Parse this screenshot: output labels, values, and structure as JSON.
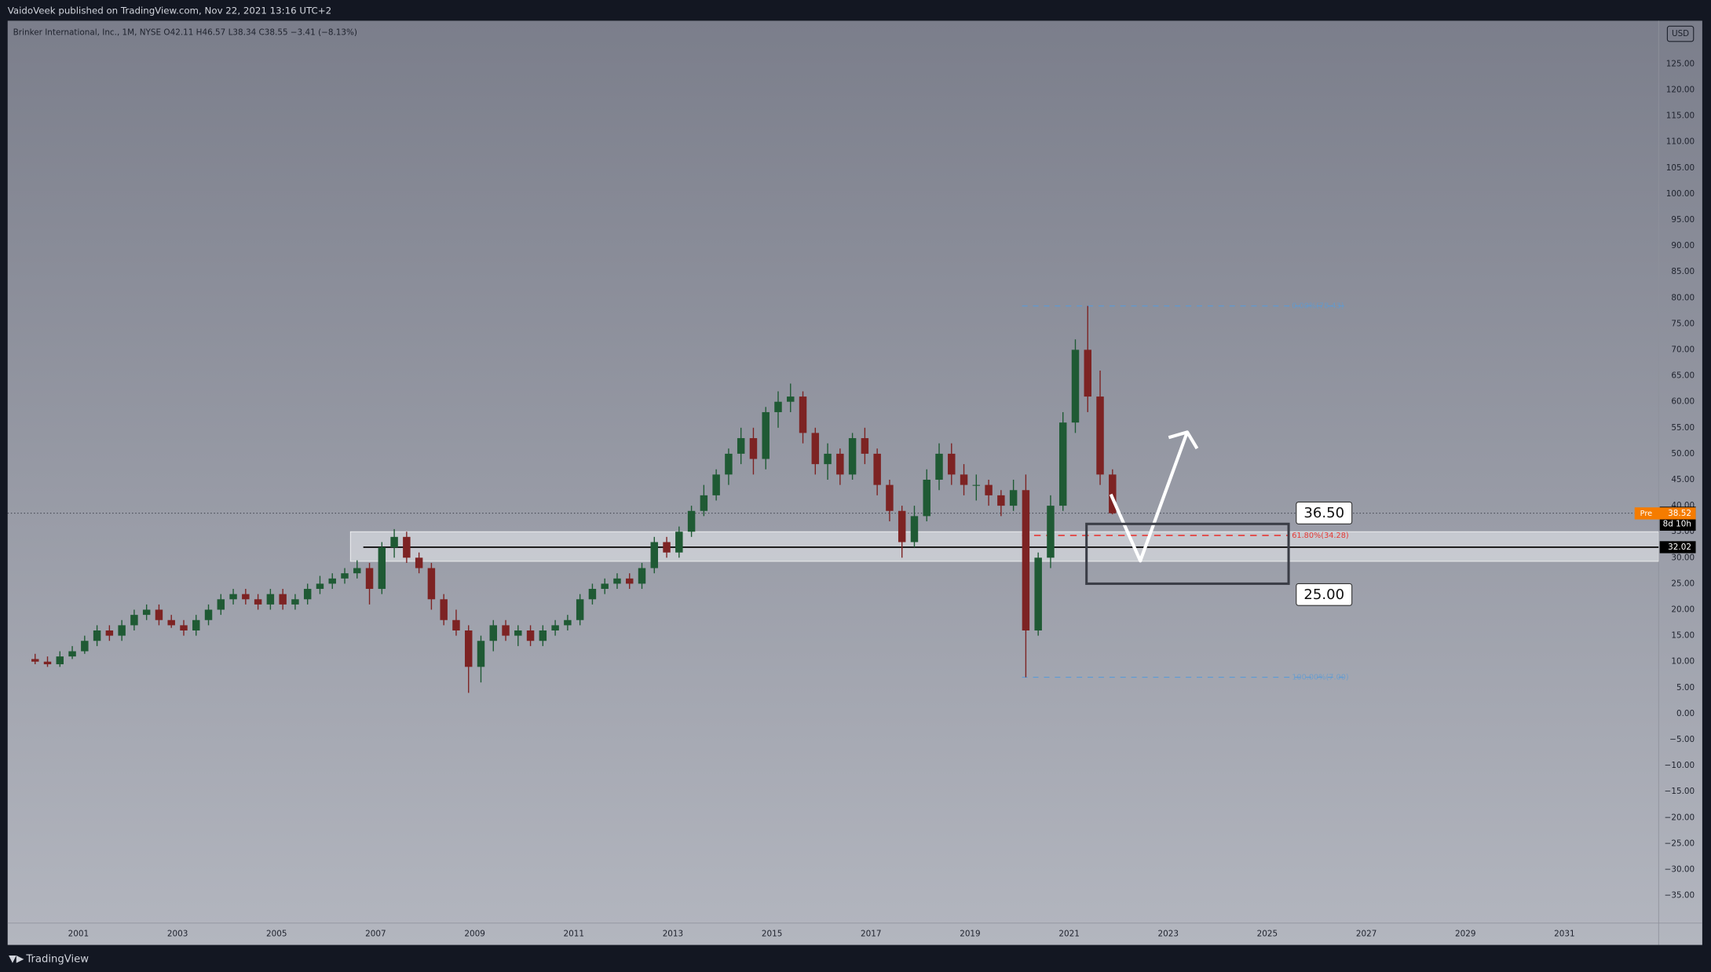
{
  "header": "VaidoVeek published on TradingView.com, Nov 22, 2021 13:16 UTC+2",
  "footer": "TradingView",
  "chart_data": {
    "type": "candlestick",
    "legend": "Brinker International, Inc., 1M, NYSE  O42.11 H46.57 L38.34 C38.55 −3.41 (−8.13%)",
    "currency": "USD",
    "up_color": "#1f5a34",
    "down_color": "#7d2323",
    "x": [
      2000.125,
      2000.375,
      2000.625,
      2000.875,
      2001.125,
      2001.375,
      2001.625,
      2001.875,
      2002.125,
      2002.375,
      2002.625,
      2002.875,
      2003.125,
      2003.375,
      2003.625,
      2003.875,
      2004.125,
      2004.375,
      2004.625,
      2004.875,
      2005.125,
      2005.375,
      2005.625,
      2005.875,
      2006.125,
      2006.375,
      2006.625,
      2006.875,
      2007.125,
      2007.375,
      2007.625,
      2007.875,
      2008.125,
      2008.375,
      2008.625,
      2008.875,
      2009.125,
      2009.375,
      2009.625,
      2009.875,
      2010.125,
      2010.375,
      2010.625,
      2010.875,
      2011.125,
      2011.375,
      2011.625,
      2011.875,
      2012.125,
      2012.375,
      2012.625,
      2012.875,
      2013.125,
      2013.375,
      2013.625,
      2013.875,
      2014.125,
      2014.375,
      2014.625,
      2014.875,
      2015.125,
      2015.375,
      2015.625,
      2015.875,
      2016.125,
      2016.375,
      2016.625,
      2016.875,
      2017.125,
      2017.375,
      2017.625,
      2017.875,
      2018.125,
      2018.375,
      2018.625,
      2018.875,
      2019.125,
      2019.375,
      2019.625,
      2019.875,
      2020.125,
      2020.375,
      2020.625,
      2020.875,
      2021.125,
      2021.375,
      2021.625,
      2021.875
    ],
    "open": [
      10.5,
      10,
      9.5,
      11,
      12,
      14,
      16,
      15,
      17,
      19,
      20,
      18,
      17,
      16,
      18,
      20,
      22,
      23,
      22,
      21,
      23,
      21,
      22,
      24,
      25,
      26,
      27,
      28,
      24,
      32,
      34,
      30,
      28,
      22,
      18,
      16,
      9,
      14,
      17,
      15,
      16,
      14,
      16,
      17,
      18,
      22,
      24,
      25,
      26,
      25,
      28,
      33,
      31,
      35,
      39,
      42,
      46,
      50,
      53,
      49,
      58,
      60,
      61,
      54,
      48,
      50,
      46,
      53,
      50,
      44,
      39,
      33,
      38,
      45,
      50,
      46,
      44,
      44,
      42,
      40,
      43,
      16,
      30,
      40,
      56,
      70,
      61,
      46
    ],
    "high": [
      11.5,
      11,
      12,
      13,
      15,
      17,
      17,
      18,
      20,
      21,
      21,
      19,
      18,
      19,
      21,
      23,
      24,
      24,
      23,
      24,
      24,
      23,
      25,
      26.5,
      27,
      28,
      29.5,
      29,
      33,
      35.5,
      35,
      31,
      29,
      23,
      20,
      17,
      15,
      18,
      18,
      17,
      17,
      17,
      18,
      19,
      23,
      25,
      26,
      27,
      27,
      29,
      34,
      34,
      36,
      40,
      44,
      47,
      51,
      55,
      55,
      59,
      62,
      63.5,
      62,
      55,
      52,
      51,
      54,
      55,
      51,
      45,
      40,
      40,
      47,
      52,
      52,
      48,
      46,
      45,
      43,
      45,
      46,
      31,
      42,
      58,
      72,
      78.43,
      66,
      47
    ],
    "low": [
      9.5,
      9,
      9,
      10.5,
      11.5,
      13,
      14,
      14,
      16,
      18,
      17,
      16.5,
      15,
      15,
      17,
      19,
      21,
      21,
      20,
      20,
      20,
      20,
      21,
      23,
      24,
      25,
      26,
      21,
      23,
      30,
      29,
      27,
      20,
      17,
      15,
      4,
      6,
      12,
      14,
      13,
      13,
      13,
      15,
      16,
      17,
      21,
      23,
      24,
      24,
      24,
      27,
      30,
      30,
      34,
      38,
      41,
      44,
      48,
      46,
      47,
      55,
      58,
      52,
      46,
      45,
      44,
      45,
      48,
      42,
      37,
      30,
      32,
      37,
      43,
      44,
      42,
      41,
      40,
      38,
      39,
      7,
      15,
      28,
      39,
      54,
      58,
      44,
      38.34
    ],
    "close": [
      10,
      9.5,
      11,
      12,
      14,
      16,
      15,
      17,
      19,
      20,
      18,
      17,
      16,
      18,
      20,
      22,
      23,
      22,
      21,
      23,
      21,
      22,
      24,
      25,
      26,
      27,
      28,
      24,
      32,
      34,
      30,
      28,
      22,
      18,
      16,
      9,
      14,
      17,
      15,
      16,
      14,
      16,
      17,
      18,
      22,
      24,
      25,
      26,
      25,
      28,
      33,
      31,
      35,
      39,
      42,
      46,
      50,
      53,
      49,
      58,
      60,
      61,
      54,
      48,
      50,
      46,
      53,
      50,
      44,
      39,
      33,
      38,
      45,
      50,
      46,
      44,
      44,
      42,
      40,
      43,
      16,
      30,
      40,
      56,
      70,
      61,
      46,
      38.55
    ],
    "xlim": [
      1999.57,
      2032.9
    ],
    "ylim": [
      -40.3,
      133.3
    ],
    "xticks": [
      2001,
      2003,
      2005,
      2007,
      2009,
      2011,
      2013,
      2015,
      2017,
      2019,
      2021,
      2023,
      2025,
      2027,
      2029,
      2031
    ],
    "yticks": [
      {
        "value": 125,
        "label": "125.00"
      },
      {
        "value": 120,
        "label": "120.00"
      },
      {
        "value": 115,
        "label": "115.00"
      },
      {
        "value": 110,
        "label": "110.00"
      },
      {
        "value": 105,
        "label": "105.00"
      },
      {
        "value": 100,
        "label": "100.00"
      },
      {
        "value": 95,
        "label": "95.00"
      },
      {
        "value": 90,
        "label": "90.00"
      },
      {
        "value": 85,
        "label": "85.00"
      },
      {
        "value": 80,
        "label": "80.00"
      },
      {
        "value": 75,
        "label": "75.00"
      },
      {
        "value": 70,
        "label": "70.00"
      },
      {
        "value": 65,
        "label": "65.00"
      },
      {
        "value": 60,
        "label": "60.00"
      },
      {
        "value": 55,
        "label": "55.00"
      },
      {
        "value": 50,
        "label": "50.00"
      },
      {
        "value": 45,
        "label": "45.00"
      },
      {
        "value": 40,
        "label": "40.00"
      },
      {
        "value": 35,
        "label": "35.00"
      },
      {
        "value": 30,
        "label": "30.00"
      },
      {
        "value": 25,
        "label": "25.00"
      },
      {
        "value": 20,
        "label": "20.00"
      },
      {
        "value": 15,
        "label": "15.00"
      },
      {
        "value": 10,
        "label": "10.00"
      },
      {
        "value": 5,
        "label": "5.00"
      },
      {
        "value": 0,
        "label": "0.00"
      },
      {
        "value": -5,
        "label": "−5.00"
      },
      {
        "value": -10,
        "label": "−10.00"
      },
      {
        "value": -15,
        "label": "−15.00"
      },
      {
        "value": -20,
        "label": "−20.00"
      },
      {
        "value": -25,
        "label": "−25.00"
      },
      {
        "value": -30,
        "label": "−30.00"
      },
      {
        "value": -35,
        "label": "−35.00"
      }
    ],
    "grid": false,
    "fib_levels": [
      {
        "label": "0.00%(78.43)",
        "value": 78.43,
        "color": "#5b9bd5"
      },
      {
        "label": "61.80%(34.28)",
        "value": 34.28,
        "color": "#e53935"
      },
      {
        "label": "100.00%(7.00)",
        "value": 7.0,
        "color": "#5b9bd5"
      }
    ],
    "fib_x": [
      2020.05,
      2026.65
    ],
    "zone": [
      29.3,
      35
    ],
    "zone_start": 2006.49,
    "level": 32.02,
    "level_start": 2006.75,
    "target_box": {
      "x": [
        2021.35,
        2025.43
      ],
      "values": [
        36.5,
        25
      ],
      "value_labels": [
        "36.50",
        "25.00"
      ]
    },
    "last_price": 38.55,
    "countdown": "8d 10h",
    "pre_market": {
      "name": "Pre",
      "value": 38.52
    }
  }
}
